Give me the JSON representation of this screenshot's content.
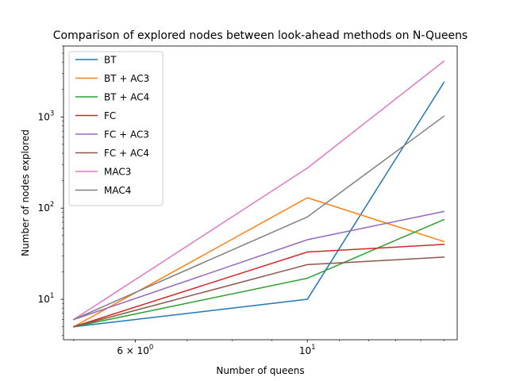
{
  "chart_data": {
    "type": "line",
    "title": "Comparison of explored nodes between look-ahead methods on N-Queens",
    "xlabel": "Number of queens",
    "ylabel": "Number of nodes explored",
    "xscale": "log",
    "yscale": "log",
    "xlim": [
      4.85,
      15.6
    ],
    "ylim": [
      3.6,
      6000
    ],
    "x": [
      5,
      10,
      15
    ],
    "x_ticks": [
      {
        "value": 6,
        "base": "6",
        "sep": " × ",
        "mantissa": "10",
        "exp": "0"
      },
      {
        "value": 10,
        "base": "",
        "sep": "",
        "mantissa": "10",
        "exp": "1"
      }
    ],
    "y_ticks": [
      {
        "value": 10,
        "mantissa": "10",
        "exp": "1"
      },
      {
        "value": 100,
        "mantissa": "10",
        "exp": "2"
      },
      {
        "value": 1000,
        "mantissa": "10",
        "exp": "3"
      }
    ],
    "legend_position": "top-left",
    "grid": false,
    "series": [
      {
        "name": "BT",
        "color": "#1f77b4",
        "values": [
          5,
          10,
          2400
        ]
      },
      {
        "name": "BT + AC3",
        "color": "#ff7f0e",
        "values": [
          5,
          130,
          43
        ]
      },
      {
        "name": "BT + AC4",
        "color": "#2ca02c",
        "values": [
          5,
          17,
          75
        ]
      },
      {
        "name": "FC",
        "color": "#d62728",
        "values": [
          5,
          33,
          40
        ]
      },
      {
        "name": "FC + AC3",
        "color": "#9467bd",
        "values": [
          6,
          45,
          92
        ]
      },
      {
        "name": "FC + AC4",
        "color": "#8c564b",
        "values": [
          5,
          24,
          29
        ]
      },
      {
        "name": "MAC3",
        "color": "#e377c2",
        "values": [
          6,
          275,
          4100
        ]
      },
      {
        "name": "MAC4",
        "color": "#7f7f7f",
        "values": [
          6,
          80,
          1020
        ]
      }
    ]
  }
}
